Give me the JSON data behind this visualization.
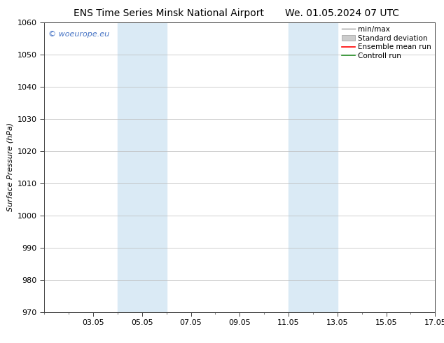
{
  "title_left": "ENS Time Series Minsk National Airport",
  "title_right": "We. 01.05.2024 07 UTC",
  "ylabel": "Surface Pressure (hPa)",
  "ylim": [
    970,
    1060
  ],
  "yticks": [
    970,
    980,
    990,
    1000,
    1010,
    1020,
    1030,
    1040,
    1050,
    1060
  ],
  "xtick_labels": [
    "03.05",
    "05.05",
    "07.05",
    "09.05",
    "11.05",
    "13.05",
    "15.05",
    "17.05"
  ],
  "xtick_positions": [
    2,
    4,
    6,
    8,
    10,
    12,
    14,
    16
  ],
  "xlim": [
    0,
    16
  ],
  "shaded_regions": [
    {
      "x_start": 3.0,
      "x_end": 5.0,
      "color": "#daeaf5"
    },
    {
      "x_start": 10.0,
      "x_end": 12.0,
      "color": "#daeaf5"
    }
  ],
  "watermark_text": "© woeurope.eu",
  "watermark_color": "#4472c4",
  "legend_entries": [
    {
      "label": "min/max",
      "color": "#aaaaaa"
    },
    {
      "label": "Standard deviation",
      "color": "#cccccc"
    },
    {
      "label": "Ensemble mean run",
      "color": "#ff0000"
    },
    {
      "label": "Controll run",
      "color": "#228b22"
    }
  ],
  "background_color": "#ffffff",
  "grid_color": "#bbbbbb",
  "title_fontsize": 10,
  "axis_label_fontsize": 8,
  "tick_fontsize": 8,
  "legend_fontsize": 7.5,
  "watermark_fontsize": 8
}
